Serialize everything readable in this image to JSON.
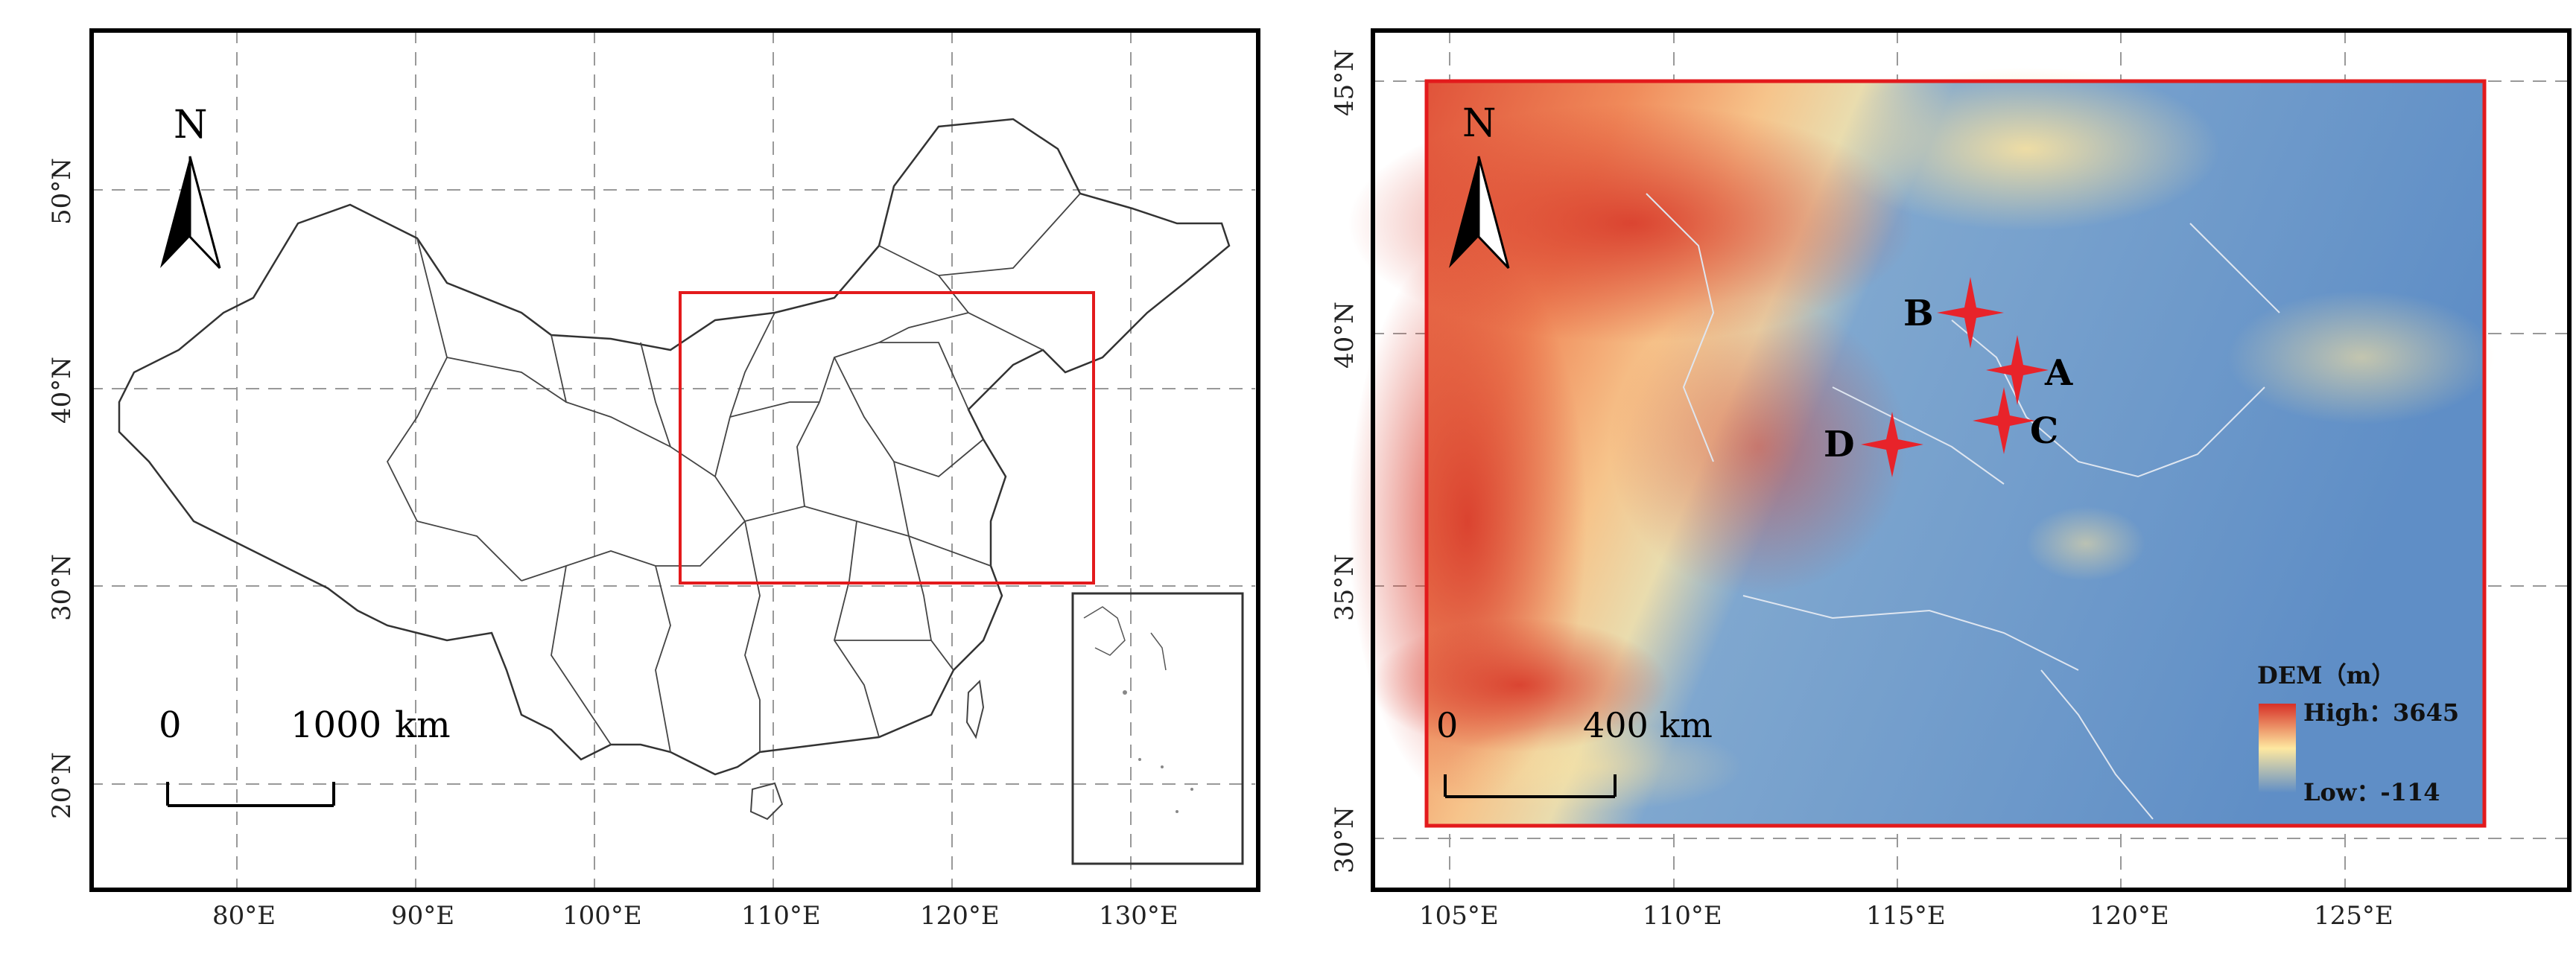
{
  "left_map": {
    "north_label": "N",
    "scale_zero": "0",
    "scale_value": "1000",
    "scale_unit": "km",
    "x_ticks": [
      "80°E",
      "90°E",
      "100°E",
      "110°E",
      "120°E",
      "130°E"
    ],
    "y_ticks": [
      "20°N",
      "30°N",
      "40°N",
      "50°N"
    ]
  },
  "right_map": {
    "north_label": "N",
    "scale_zero": "0",
    "scale_text": "400 km",
    "x_ticks": [
      "105°E",
      "110°E",
      "115°E",
      "120°E",
      "125°E"
    ],
    "y_ticks": [
      "30°N",
      "35°N",
      "40°N",
      "45°N"
    ],
    "legend": {
      "title": "DEM（m）",
      "high": "High：3645",
      "low": "Low：-114"
    },
    "sites": [
      {
        "label": "A",
        "lon": 117.4,
        "lat": 39.3
      },
      {
        "label": "B",
        "lon": 116.3,
        "lat": 40.4
      },
      {
        "label": "C",
        "lon": 116.8,
        "lat": 38.5
      },
      {
        "label": "D",
        "lon": 114.4,
        "lat": 37.9
      }
    ]
  },
  "colors": {
    "highlight": "#e31a1c",
    "dem_high": "#d73027",
    "dem_mid": "#fee8a0",
    "dem_low": "#5f8ec6"
  }
}
